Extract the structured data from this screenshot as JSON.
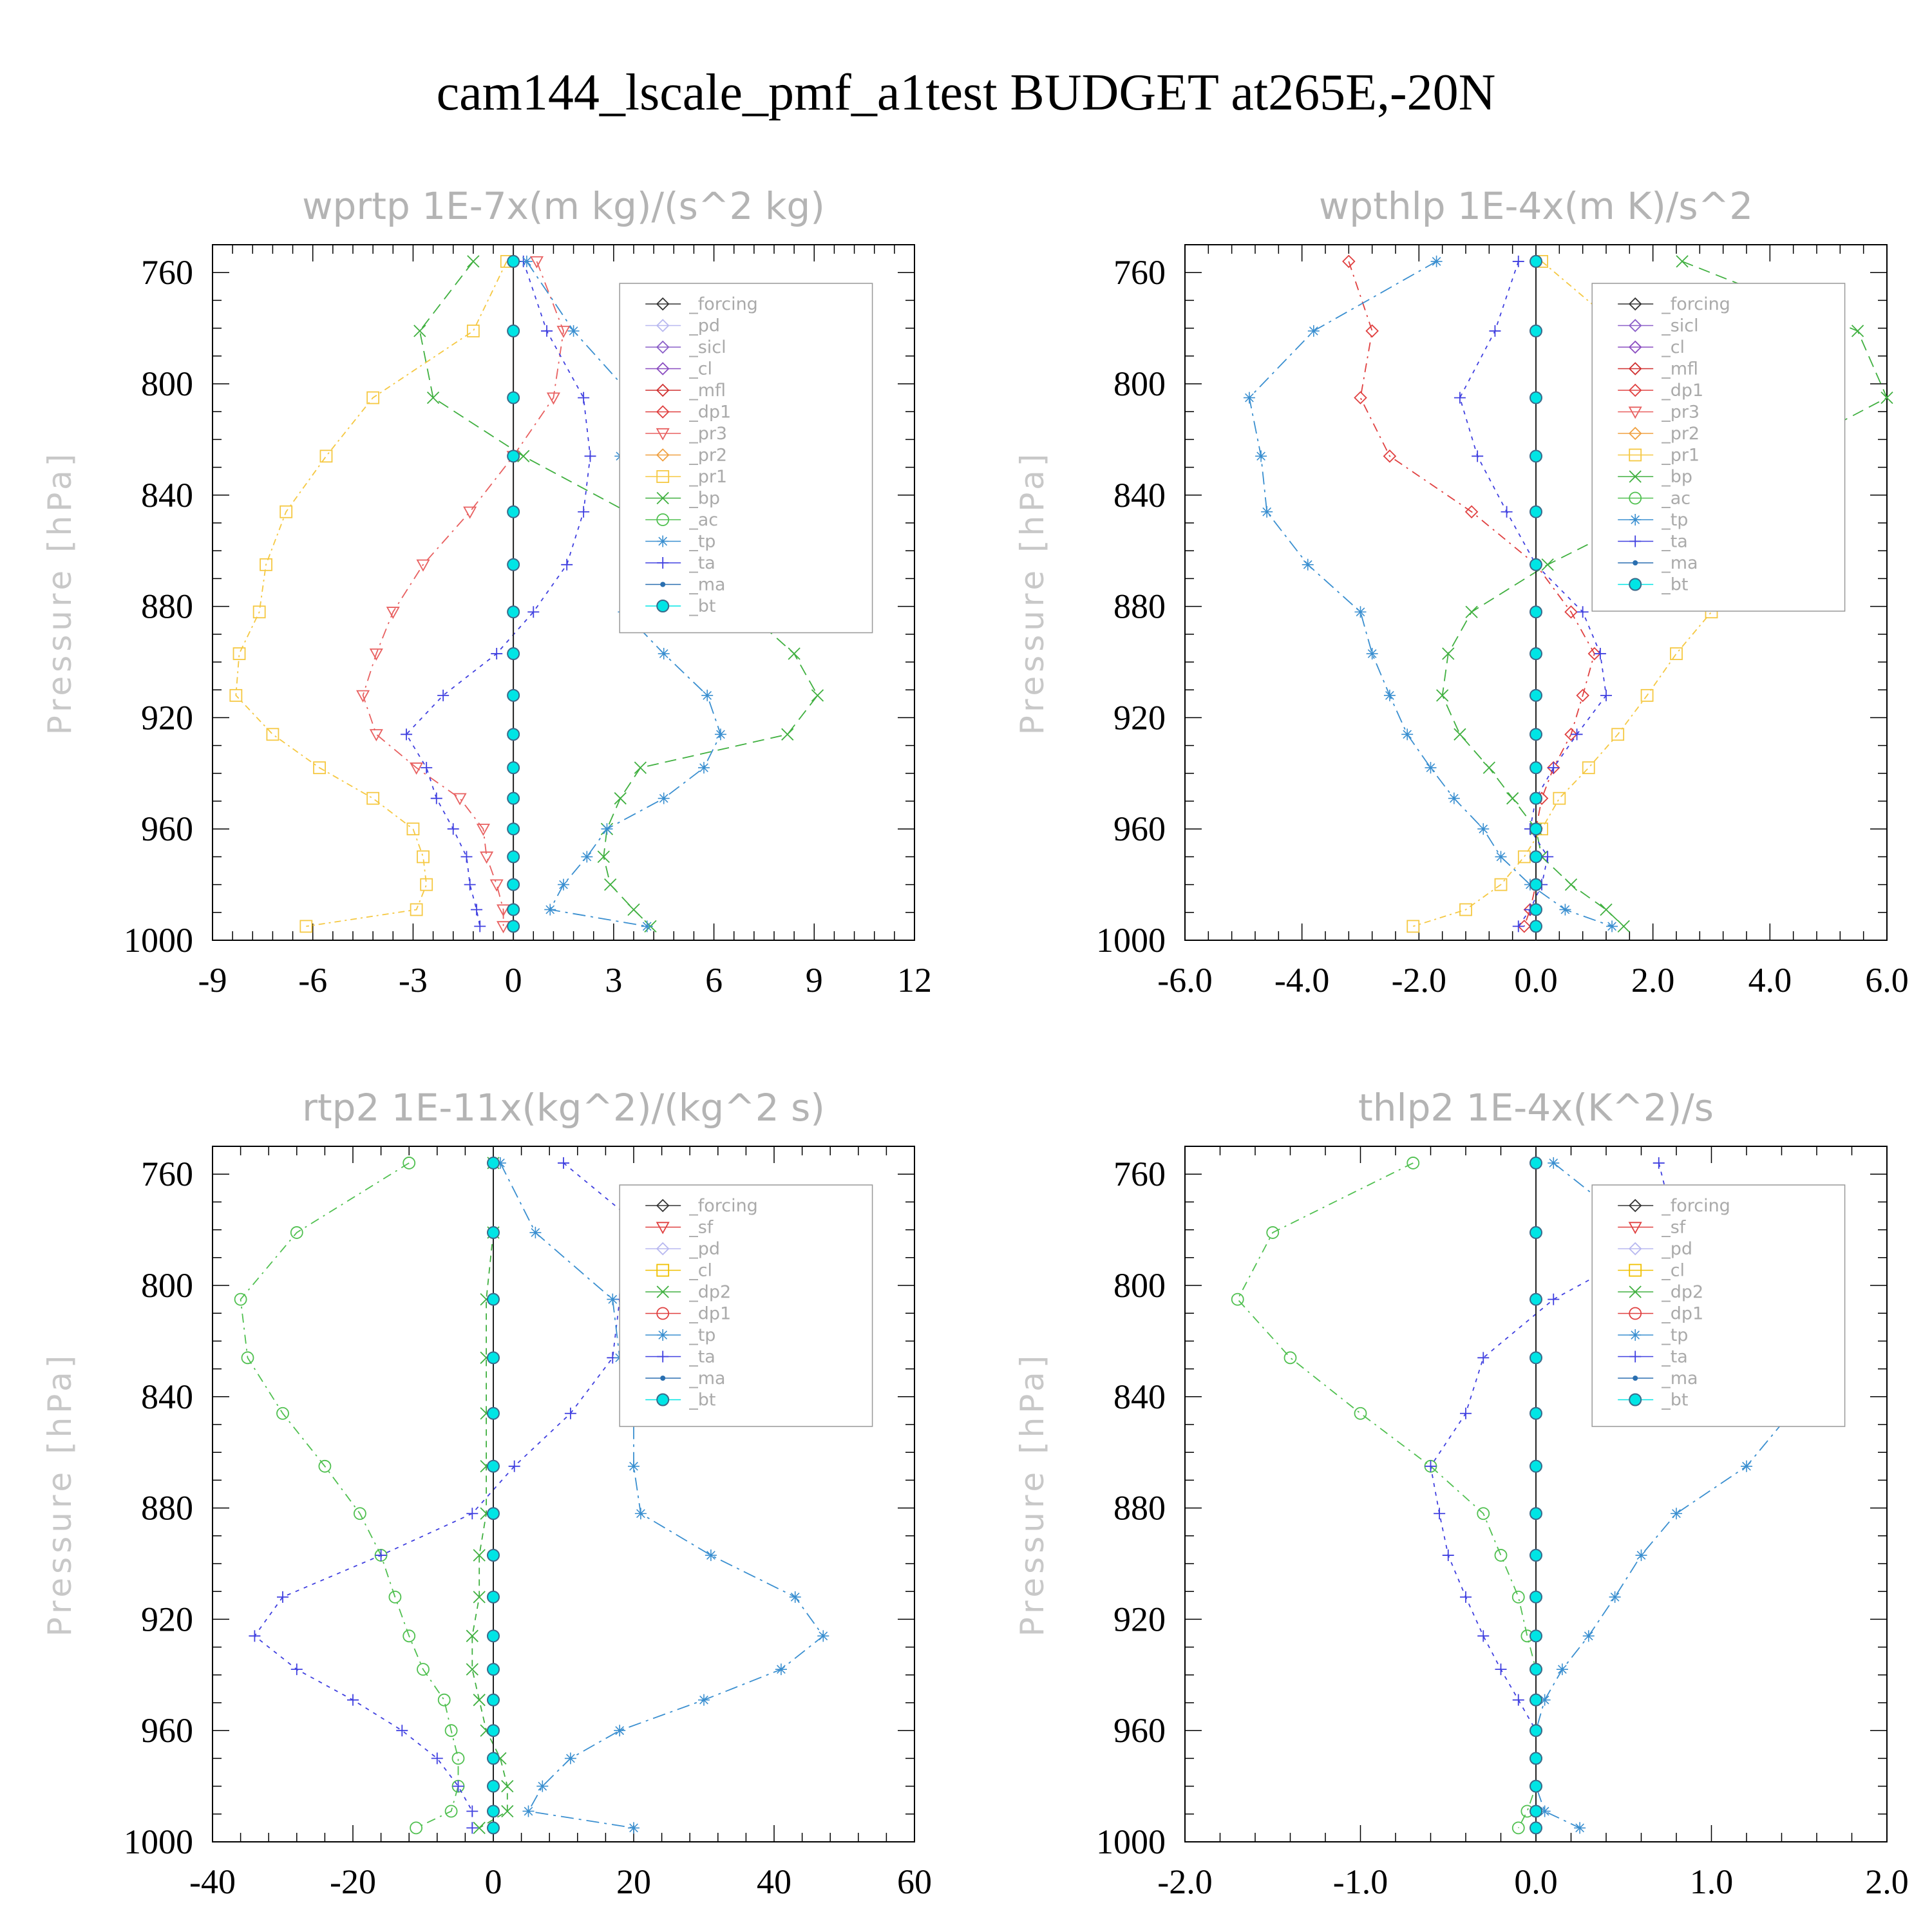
{
  "title": "cam144_lscale_pmf_a1test  BUDGET at265E,-20N",
  "colors": {
    "forcing": "#333333",
    "pd": "#b8b8f0",
    "sicl": "#8a5ec8",
    "cl": "#8a4cc0",
    "mfl": "#d03030",
    "dp1": "#e04040",
    "dp2": "#40b040",
    "pr3": "#e86060",
    "pr2": "#f0a040",
    "pr1": "#f5c842",
    "bp": "#40b040",
    "ac": "#50c050",
    "tp": "#3a8fd0",
    "ta": "#4040e0",
    "ma": "#2a6fb0",
    "bt": "#00e5e5",
    "sf": "#e04040",
    "cl2": "#f0c000"
  },
  "chart_data": [
    {
      "type": "line",
      "title": "wprtp  1E-7x(m kg)/(s^2 kg)",
      "ylabel": "Pressure [hPa]",
      "xlim": [
        -9,
        12
      ],
      "xticks": [
        "-9",
        "-6",
        "-3",
        "0",
        "3",
        "6",
        "9",
        "12"
      ],
      "ylim": [
        1000,
        750
      ],
      "yticks": [
        "760",
        "800",
        "840",
        "880",
        "920",
        "960",
        "1000"
      ],
      "pressure": [
        756,
        781,
        805,
        826,
        846,
        865,
        882,
        897,
        912,
        926,
        938,
        949,
        960,
        970,
        980,
        989,
        995
      ],
      "legend": [
        "_forcing",
        "_pd",
        "_sicl",
        "_cl",
        "_mfl",
        "_dp1",
        "_pr3",
        "_pr2",
        "_pr1",
        "_bp",
        "_ac",
        "_tp",
        "_ta",
        "_ma",
        "_bt"
      ],
      "series": [
        {
          "name": "_bp",
          "color": "bp",
          "marker": "x",
          "values": [
            -1.2,
            -2.8,
            -2.4,
            0.3,
            3.4,
            5.4,
            7.0,
            8.4,
            9.1,
            8.2,
            3.8,
            3.2,
            2.8,
            2.7,
            2.9,
            3.6,
            4.1
          ]
        },
        {
          "name": "_pr1",
          "color": "pr1",
          "marker": "square",
          "values": [
            -0.2,
            -1.2,
            -4.2,
            -5.6,
            -6.8,
            -7.4,
            -7.6,
            -8.2,
            -8.3,
            -7.2,
            -5.8,
            -4.2,
            -3.0,
            -2.7,
            -2.6,
            -2.9,
            -6.2
          ]
        },
        {
          "name": "_pr3",
          "color": "pr3",
          "marker": "tri-down",
          "values": [
            0.7,
            1.5,
            1.2,
            0.0,
            -1.3,
            -2.7,
            -3.6,
            -4.1,
            -4.5,
            -4.1,
            -2.9,
            -1.6,
            -0.9,
            -0.8,
            -0.5,
            -0.3,
            -0.3
          ]
        },
        {
          "name": "_ta",
          "color": "ta",
          "marker": "plus",
          "values": [
            0.3,
            1.0,
            2.1,
            2.3,
            2.1,
            1.6,
            0.6,
            -0.5,
            -2.1,
            -3.2,
            -2.6,
            -2.3,
            -1.8,
            -1.4,
            -1.3,
            -1.1,
            -1.0
          ]
        },
        {
          "name": "_tp",
          "color": "tp",
          "marker": "star",
          "values": [
            0.4,
            1.8,
            3.6,
            3.2,
            3.5,
            3.4,
            3.3,
            4.5,
            5.8,
            6.2,
            5.7,
            4.5,
            2.8,
            2.2,
            1.5,
            1.1,
            4.0
          ]
        },
        {
          "name": "_bt",
          "color": "bt",
          "marker": "dot",
          "values": [
            0,
            0,
            0,
            0,
            0,
            0,
            0,
            0,
            0,
            0,
            0,
            0,
            0,
            0,
            0,
            0,
            0
          ]
        }
      ]
    },
    {
      "type": "line",
      "title": "wpthlp  1E-4x(m K)/s^2",
      "ylabel": "Pressure [hPa]",
      "xlim": [
        -6,
        6
      ],
      "xticks": [
        "-6.0",
        "-4.0",
        "-2.0",
        "0.0",
        "2.0",
        "4.0",
        "6.0"
      ],
      "ylim": [
        1000,
        750
      ],
      "yticks": [
        "760",
        "800",
        "840",
        "880",
        "920",
        "960",
        "1000"
      ],
      "pressure": [
        756,
        781,
        805,
        826,
        846,
        865,
        882,
        897,
        912,
        926,
        938,
        949,
        960,
        970,
        980,
        989,
        995
      ],
      "legend": [
        "_forcing",
        "_sicl",
        "_cl",
        "_mfl",
        "_dp1",
        "_pr3",
        "_pr2",
        "_pr1",
        "_bp",
        "_ac",
        "_tp",
        "_ta",
        "_ma",
        "_bt"
      ],
      "series": [
        {
          "name": "_bp",
          "color": "bp",
          "marker": "x",
          "values": [
            2.5,
            5.5,
            6.0,
            4.1,
            2.0,
            0.2,
            -1.1,
            -1.5,
            -1.6,
            -1.3,
            -0.8,
            -0.4,
            0.0,
            0.1,
            0.6,
            1.2,
            1.5
          ]
        },
        {
          "name": "_pr1",
          "color": "pr1",
          "marker": "square",
          "values": [
            0.1,
            1.5,
            3.2,
            3.6,
            3.8,
            3.6,
            3.0,
            2.4,
            1.9,
            1.4,
            0.9,
            0.4,
            0.1,
            -0.2,
            -0.6,
            -1.2,
            -2.1
          ]
        },
        {
          "name": "_dp1",
          "color": "dp1",
          "marker": "diamond",
          "values": [
            -3.2,
            -2.8,
            -3.0,
            -2.5,
            -1.1,
            0.0,
            0.6,
            1.0,
            0.8,
            0.6,
            0.3,
            0.1,
            0.0,
            0.0,
            0.0,
            -0.1,
            -0.2
          ]
        },
        {
          "name": "_ta",
          "color": "ta",
          "marker": "plus",
          "values": [
            -0.3,
            -0.7,
            -1.3,
            -1.0,
            -0.5,
            0.0,
            0.8,
            1.1,
            1.2,
            0.7,
            0.3,
            0.0,
            -0.1,
            0.2,
            0.1,
            -0.1,
            -0.3
          ]
        },
        {
          "name": "_tp",
          "color": "tp",
          "marker": "star",
          "values": [
            -1.7,
            -3.8,
            -4.9,
            -4.7,
            -4.6,
            -3.9,
            -3.0,
            -2.8,
            -2.5,
            -2.2,
            -1.8,
            -1.4,
            -0.9,
            -0.6,
            -0.1,
            0.5,
            1.3
          ]
        },
        {
          "name": "_bt",
          "color": "bt",
          "marker": "dot",
          "values": [
            0,
            0,
            0,
            0,
            0,
            0,
            0,
            0,
            0,
            0,
            0,
            0,
            0,
            0,
            0,
            0,
            0
          ]
        }
      ]
    },
    {
      "type": "line",
      "title": "rtp2  1E-11x(kg^2)/(kg^2 s)",
      "ylabel": "Pressure [hPa]",
      "xlim": [
        -40,
        60
      ],
      "xticks": [
        "-40",
        "-20",
        "0",
        "20",
        "40",
        "60"
      ],
      "ylim": [
        1000,
        750
      ],
      "yticks": [
        "760",
        "800",
        "840",
        "880",
        "920",
        "960",
        "1000"
      ],
      "pressure": [
        756,
        781,
        805,
        826,
        846,
        865,
        882,
        897,
        912,
        926,
        938,
        949,
        960,
        970,
        980,
        989,
        995
      ],
      "legend": [
        "_forcing",
        "_sf",
        "_pd",
        "_cl",
        "_dp2",
        "_dp1",
        "_tp",
        "_ta",
        "_ma",
        "_bt"
      ],
      "series": [
        {
          "name": "_dp1",
          "color": "ac",
          "marker": "circle",
          "values": [
            -12,
            -28,
            -36,
            -35,
            -30,
            -24,
            -19,
            -16,
            -14,
            -12,
            -10,
            -7,
            -6,
            -5,
            -5,
            -6,
            -11
          ]
        },
        {
          "name": "_ta",
          "color": "ta",
          "marker": "plus",
          "values": [
            10,
            22,
            18,
            17,
            11,
            3,
            -3,
            -16,
            -30,
            -34,
            -28,
            -20,
            -13,
            -8,
            -5,
            -3,
            -3
          ]
        },
        {
          "name": "_tp",
          "color": "tp",
          "marker": "star",
          "values": [
            1,
            6,
            17,
            18,
            20,
            20,
            21,
            31,
            43,
            47,
            41,
            30,
            18,
            11,
            7,
            5,
            20
          ]
        },
        {
          "name": "_dp2",
          "color": "dp2",
          "marker": "x",
          "values": [
            0,
            0,
            -1,
            -1,
            -1,
            -1,
            -1,
            -2,
            -2,
            -3,
            -3,
            -2,
            -1,
            1,
            2,
            2,
            -2
          ]
        },
        {
          "name": "_bt",
          "color": "bt",
          "marker": "dot",
          "values": [
            0,
            0,
            0,
            0,
            0,
            0,
            0,
            0,
            0,
            0,
            0,
            0,
            0,
            0,
            0,
            0,
            0
          ]
        }
      ]
    },
    {
      "type": "line",
      "title": "thlp2  1E-4x(K^2)/s",
      "ylabel": "Pressure [hPa]",
      "xlim": [
        -2,
        2
      ],
      "xticks": [
        "-2.0",
        "-1.0",
        "0.0",
        "1.0",
        "2.0"
      ],
      "ylim": [
        1000,
        750
      ],
      "yticks": [
        "760",
        "800",
        "840",
        "880",
        "920",
        "960",
        "1000"
      ],
      "pressure": [
        756,
        781,
        805,
        826,
        846,
        865,
        882,
        897,
        912,
        926,
        938,
        949,
        960,
        970,
        980,
        989,
        995
      ],
      "legend": [
        "_forcing",
        "_sf",
        "_pd",
        "_cl",
        "_dp2",
        "_dp1",
        "_tp",
        "_ta",
        "_ma",
        "_bt"
      ],
      "series": [
        {
          "name": "_dp1",
          "color": "ac",
          "marker": "circle",
          "values": [
            -0.7,
            -1.5,
            -1.7,
            -1.4,
            -1.0,
            -0.6,
            -0.3,
            -0.2,
            -0.1,
            -0.05,
            0.0,
            0.0,
            0.0,
            0.0,
            0.0,
            -0.05,
            -0.1
          ]
        },
        {
          "name": "_ta",
          "color": "ta",
          "marker": "plus",
          "values": [
            0.7,
            0.8,
            0.1,
            -0.3,
            -0.4,
            -0.6,
            -0.55,
            -0.5,
            -0.4,
            -0.3,
            -0.2,
            -0.1,
            0.0,
            0.0,
            0.0,
            0.0,
            0.0
          ]
        },
        {
          "name": "_tp",
          "color": "tp",
          "marker": "star",
          "values": [
            0.1,
            0.6,
            1.65,
            1.5,
            1.45,
            1.2,
            0.8,
            0.6,
            0.45,
            0.3,
            0.15,
            0.05,
            0.0,
            0.0,
            0.0,
            0.05,
            0.25
          ]
        },
        {
          "name": "_bt",
          "color": "bt",
          "marker": "dot",
          "values": [
            0,
            0,
            0,
            0,
            0,
            0,
            0,
            0,
            0,
            0,
            0,
            0,
            0,
            0,
            0,
            0,
            0
          ]
        }
      ]
    }
  ]
}
